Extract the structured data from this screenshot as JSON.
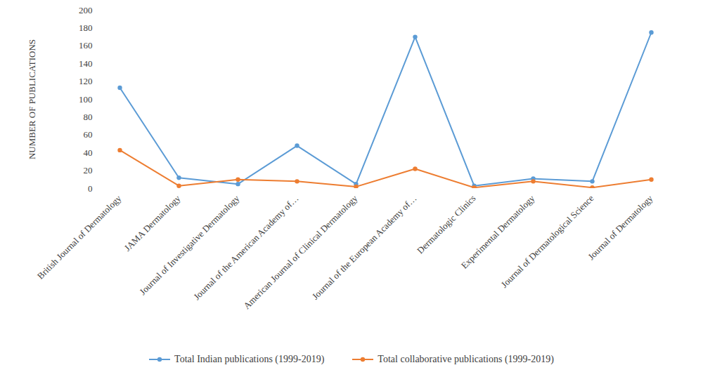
{
  "chart_data": {
    "type": "line",
    "y_label": "NUMBER OF PUBLICATIONS",
    "categories": [
      "British Journal of Dermatology",
      "JAMA Dermatology",
      "Journal of Investigative Dermatology",
      "Journal of the American Academy of…",
      "American Journal of Clinical Dermatology",
      "Journal of the European Academy of…",
      "Dermatologic Clinics",
      "Experimental Dermatology",
      "Journal of Dermatological Science",
      "Journal of Dermatology"
    ],
    "series": [
      {
        "name": "Total Indian publications (1999-2019)",
        "color": "#5b9bd5",
        "marker": "circle",
        "line_style": "solid",
        "values": [
          113,
          12,
          5,
          48,
          5,
          170,
          3,
          11,
          8,
          175
        ]
      },
      {
        "name": "Total collaborative publications (1999-2019)",
        "color": "#ed7d31",
        "marker": "circle",
        "line_style": "solid",
        "values": [
          43,
          3,
          10,
          8,
          2,
          22,
          1,
          8,
          1,
          10
        ]
      }
    ],
    "ylim": [
      0,
      200
    ],
    "yticks": [
      0,
      20,
      40,
      60,
      80,
      100,
      120,
      140,
      160,
      180,
      200
    ],
    "grid": false,
    "legend": "bottom"
  }
}
